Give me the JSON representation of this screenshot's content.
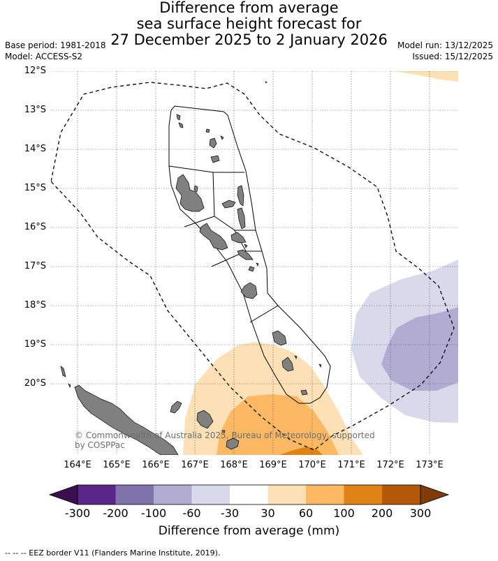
{
  "title": {
    "line1": "Difference from average",
    "line2": "sea surface height forecast for",
    "line3": "27 December 2025 to 2 January 2026"
  },
  "meta": {
    "base_period": "Base period: 1981-2018",
    "model": "Model: ACCESS-S2",
    "model_run": "Model run: 13/12/2025",
    "issued": "Issued: 15/12/2025"
  },
  "map": {
    "lat_labels": [
      "12°S",
      "13°S",
      "14°S",
      "15°S",
      "16°S",
      "17°S",
      "18°S",
      "19°S",
      "20°S"
    ],
    "lon_labels": [
      "164°E",
      "165°E",
      "166°E",
      "167°E",
      "168°E",
      "169°E",
      "170°E",
      "171°E",
      "172°E",
      "173°E"
    ],
    "copyright": "© Commonwealth of Australia 2025, Bureau of Meteorology, supported by COSPPac",
    "land_color": "#808080",
    "grid": true
  },
  "colorbar": {
    "labels": [
      "-300",
      "-200",
      "-100",
      "-60",
      "-30",
      "30",
      "60",
      "100",
      "200",
      "300"
    ],
    "colors": [
      "#3b0f4f",
      "#5b2689",
      "#8073ac",
      "#b2abd2",
      "#d8daeb",
      "#ffffff",
      "#fee0b6",
      "#fdb863",
      "#e08214",
      "#b35806",
      "#7f3b08"
    ],
    "title": "Difference from average (mm)"
  },
  "footer": "-- -- -- EEZ border V11 (Flanders Marine Institute, 2019)."
}
